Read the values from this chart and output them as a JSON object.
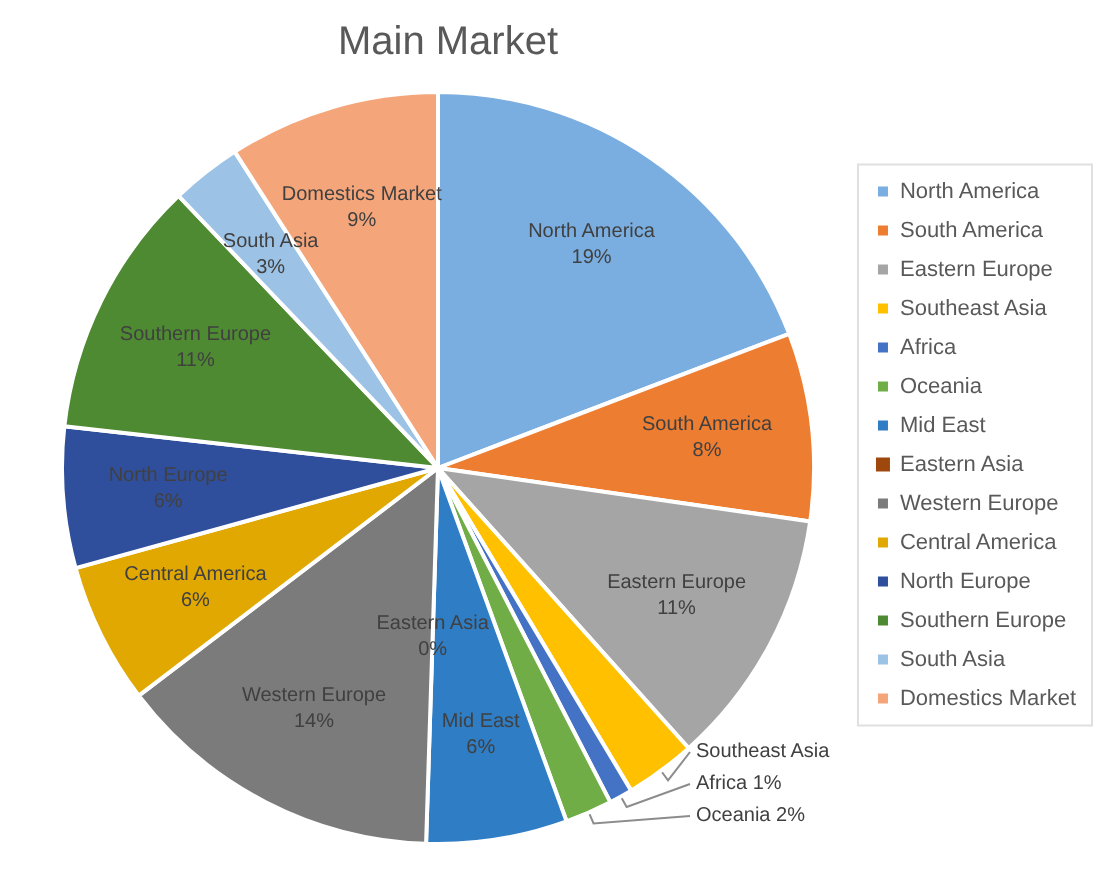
{
  "chart_data": {
    "type": "pie",
    "title": "Main Market",
    "categories": [
      "North America",
      "South America",
      "Eastern Europe",
      "Southeast Asia",
      "Africa",
      "Oceania",
      "Mid East",
      "Eastern Asia",
      "Western Europe",
      "Central America",
      "North Europe",
      "Southern Europe",
      "South Asia",
      "Domestics Market"
    ],
    "values": [
      19,
      8,
      11,
      3,
      1,
      2,
      6,
      0,
      14,
      6,
      6,
      11,
      3,
      9
    ],
    "colors": [
      "#7aaee0",
      "#ed7d31",
      "#a5a5a5",
      "#ffc000",
      "#4472c4",
      "#70ad47",
      "#2f7dc4",
      "#9e480e",
      "#7b7b7b",
      "#e0a800",
      "#2f4f9c",
      "#4e8a32",
      "#9cc3e6",
      "#f4a57a"
    ],
    "value_labels": [
      "19%",
      "8%",
      "11%",
      null,
      "1%",
      "2%",
      "6%",
      "0%",
      "14%",
      "6%",
      "6%",
      "11%",
      "3%",
      "9%"
    ],
    "legend": "right"
  }
}
